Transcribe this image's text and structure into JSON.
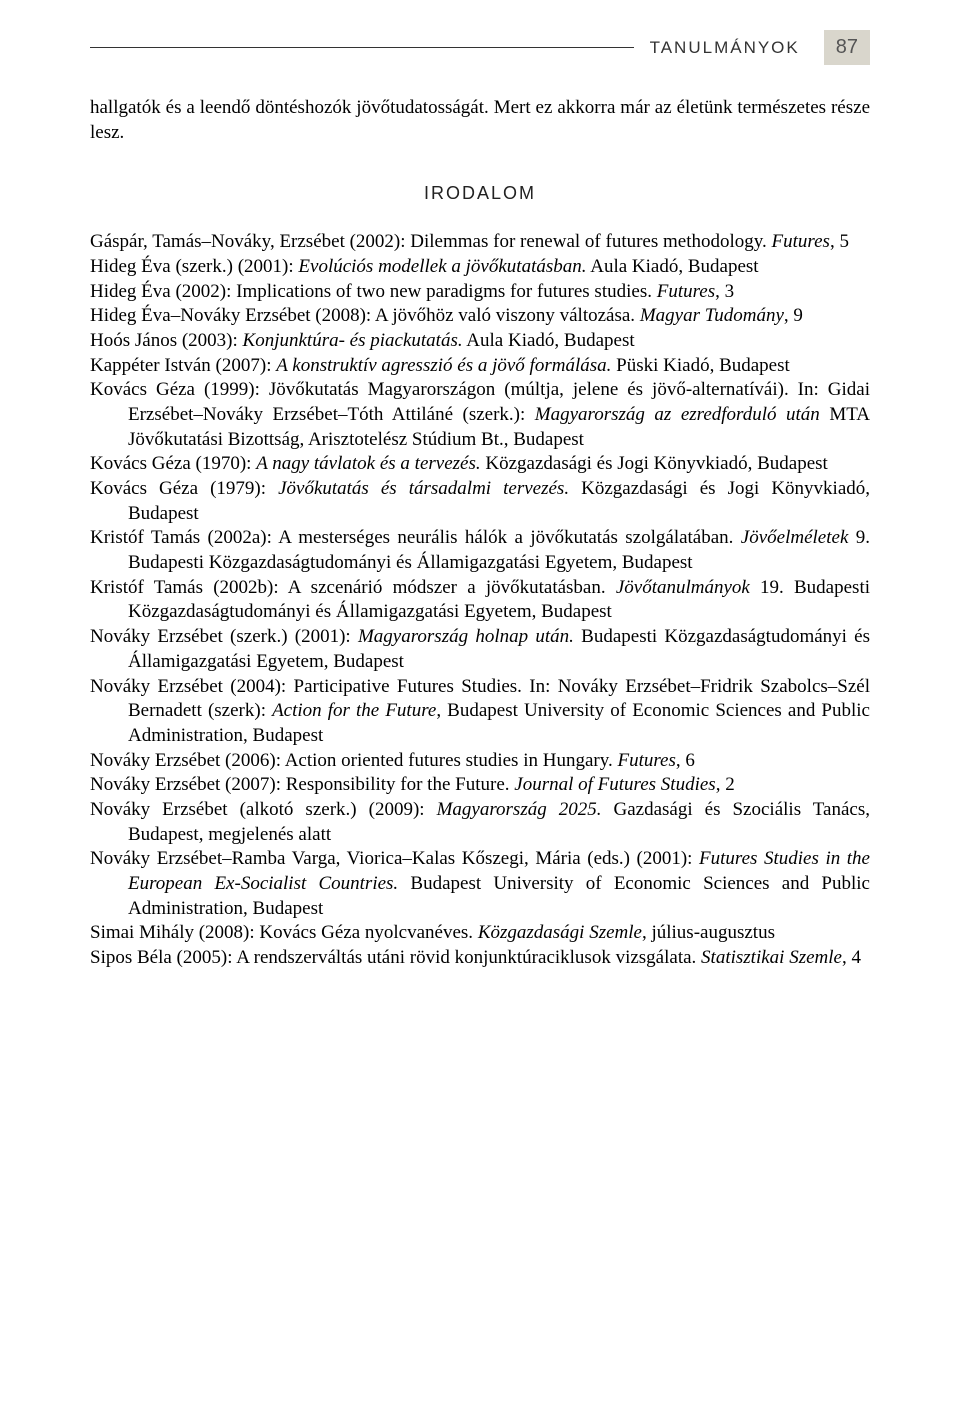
{
  "header": {
    "title": "TANULMÁNYOK",
    "page": "87"
  },
  "intro": "hallgatók és a leendő döntéshozók jövőtudatosságát. Mert ez akkorra már az életünk természetes része lesz.",
  "section_title": "IRODALOM",
  "entries": [
    "Gáspár, Tamás–Nováky, Erzsébet (2002): Dilemmas for renewal of futures methodology. <em>Futures</em>, 5",
    "Hideg Éva (szerk.) (2001): <em>Evolúciós modellek a jövőkutatásban.</em> Aula Kiadó, Budapest",
    "Hideg Éva (2002): Implications of two new paradigms for futures studies. <em>Futures</em>, 3",
    "Hideg Éva–Nováky Erzsébet (2008): A jövőhöz való viszony változása. <em>Magyar Tudomány</em>, 9",
    "Hoós János (2003): <em>Konjunktúra- és piackutatás.</em> Aula Kiadó, Budapest",
    "Kappéter István (2007): <em>A konstruktív agresszió és a jövő formálása.</em> Püski Kiadó, Budapest",
    "Kovács Géza (1999): Jövőkutatás Magyarországon (múltja, jelene és jövő-alternatívái). In: Gidai Erzsébet–Nováky Erzsébet–Tóth Attiláné (szerk.): <em>Magyarország az ezredforduló után</em> MTA Jövőkutatási Bizottság, Arisztotelész Stúdium Bt., Budapest",
    "Kovács Géza (1970): <em>A nagy távlatok és a tervezés.</em> Közgazdasági és Jogi Könyvkiadó, Budapest",
    "Kovács Géza (1979): <em>Jövőkutatás és társadalmi tervezés.</em> Közgazdasági és Jogi Könyvkiadó, Budapest",
    "Kristóf Tamás (2002a): A mesterséges neurális hálók a jövőkutatás szolgálatában. <em>Jövőelméletek</em> 9. Budapesti Közgazdaságtudományi és Államigazgatási Egyetem, Budapest",
    "Kristóf Tamás (2002b): A szcenárió módszer a jövőkutatásban. <em>Jövőtanulmányok</em> 19. Budapesti Közgazdaságtudományi és Államigazgatási Egyetem, Budapest",
    "Nováky Erzsébet (szerk.) (2001): <em>Magyarország holnap után.</em> Budapesti Közgazdaságtudományi és Államigazgatási Egyetem, Budapest",
    "Nováky Erzsébet (2004): Participative Futures Studies. In: Nováky Erzsébet–Fridrik Szabolcs–Szél Bernadett (szerk): <em>Action for the Future</em>, Budapest University of Economic Sciences and Public Administration, Budapest",
    "Nováky Erzsébet (2006): Action oriented futures studies in Hungary. <em>Futures</em>, 6",
    "Nováky Erzsébet (2007): Responsibility for the Future. <em>Journal of Futures Studies</em>, 2",
    "Nováky Erzsébet (alkotó szerk.) (2009): <em>Magyarország 2025.</em> Gazdasági és Szociális Tanács, Budapest, megjelenés alatt",
    "Nováky Erzsébet–Ramba Varga, Viorica–Kalas Kőszegi, Mária (eds.) (2001): <em>Futures Studies in the European Ex-Socialist Countries.</em> Budapest University of Economic Sciences and Public Administration, Budapest",
    "Simai Mihály (2008): Kovács Géza nyolcvanéves. <em>Közgazdasági Szemle</em>, július-augusztus",
    "Sipos Béla (2005): A rendszerváltás utáni rövid konjunktúraciklusok vizsgálata. <em>Statisztikai Szemle</em>, 4"
  ]
}
